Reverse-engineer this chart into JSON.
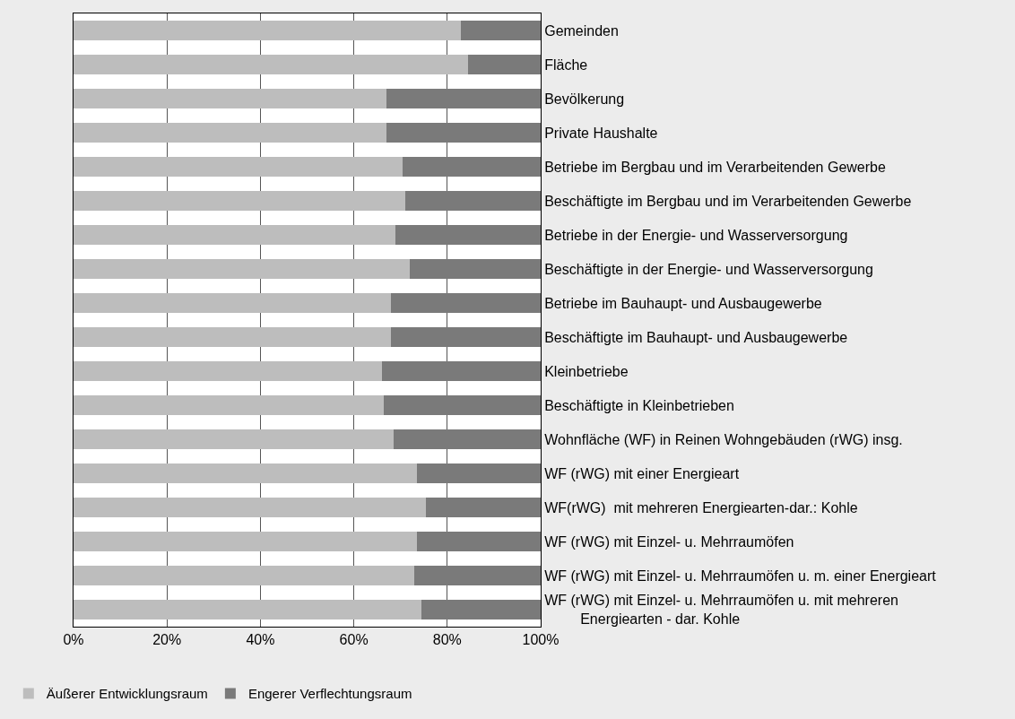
{
  "chart_data": {
    "type": "bar",
    "orientation": "horizontal",
    "stacked": true,
    "categories": [
      "Gemeinden",
      "Fläche",
      "Bevölkerung",
      "Private Haushalte",
      "Betriebe im Bergbau und im Verarbeitenden Gewerbe",
      "Beschäftigte im Bergbau und im Verarbeitenden Gewerbe",
      "Betriebe in der Energie- und Wasserversorgung",
      "Beschäftigte in der Energie- und Wasserversorgung",
      "Betriebe im Bauhaupt- und Ausbaugewerbe",
      "Beschäftigte im Bauhaupt- und Ausbaugewerbe",
      "Kleinbetriebe",
      "Beschäftigte in Kleinbetrieben",
      "Wohnfläche (WF) in Reinen Wohngebäuden (rWG) insg.",
      "WF (rWG) mit einer Energieart",
      "WF(rWG)  mit mehreren Energiearten-dar.: Kohle",
      "WF (rWG) mit Einzel- u. Mehrraumöfen",
      "WF (rWG) mit Einzel- u. Mehrraumöfen u. m. einer Energieart",
      "WF (rWG) mit Einzel- u. Mehrraumöfen u. mit mehreren\nEnergiearten - dar. Kohle"
    ],
    "series": [
      {
        "name": "Äußerer Entwicklungsraum",
        "color": "#bdbdbd",
        "values": [
          83,
          84.5,
          67,
          67,
          70.5,
          71,
          69,
          72,
          68,
          68,
          66,
          66.5,
          68.5,
          73.5,
          75.5,
          73.5,
          73,
          74.5
        ]
      },
      {
        "name": "Engerer Verflechtungsraum",
        "color": "#7a7a7a",
        "values": [
          17,
          15.5,
          33,
          33,
          29.5,
          29,
          31,
          28,
          32,
          32,
          34,
          33.5,
          31.5,
          26.5,
          24.5,
          26.5,
          27,
          25.5
        ]
      }
    ],
    "xlim": [
      0,
      100
    ],
    "xticks": [
      {
        "value": 0,
        "label": "0%"
      },
      {
        "value": 20,
        "label": "20%"
      },
      {
        "value": 40,
        "label": "40%"
      },
      {
        "value": 60,
        "label": "60%"
      },
      {
        "value": 80,
        "label": "80%"
      },
      {
        "value": 100,
        "label": "100%"
      }
    ],
    "grid": "x",
    "legend": "bottom"
  }
}
